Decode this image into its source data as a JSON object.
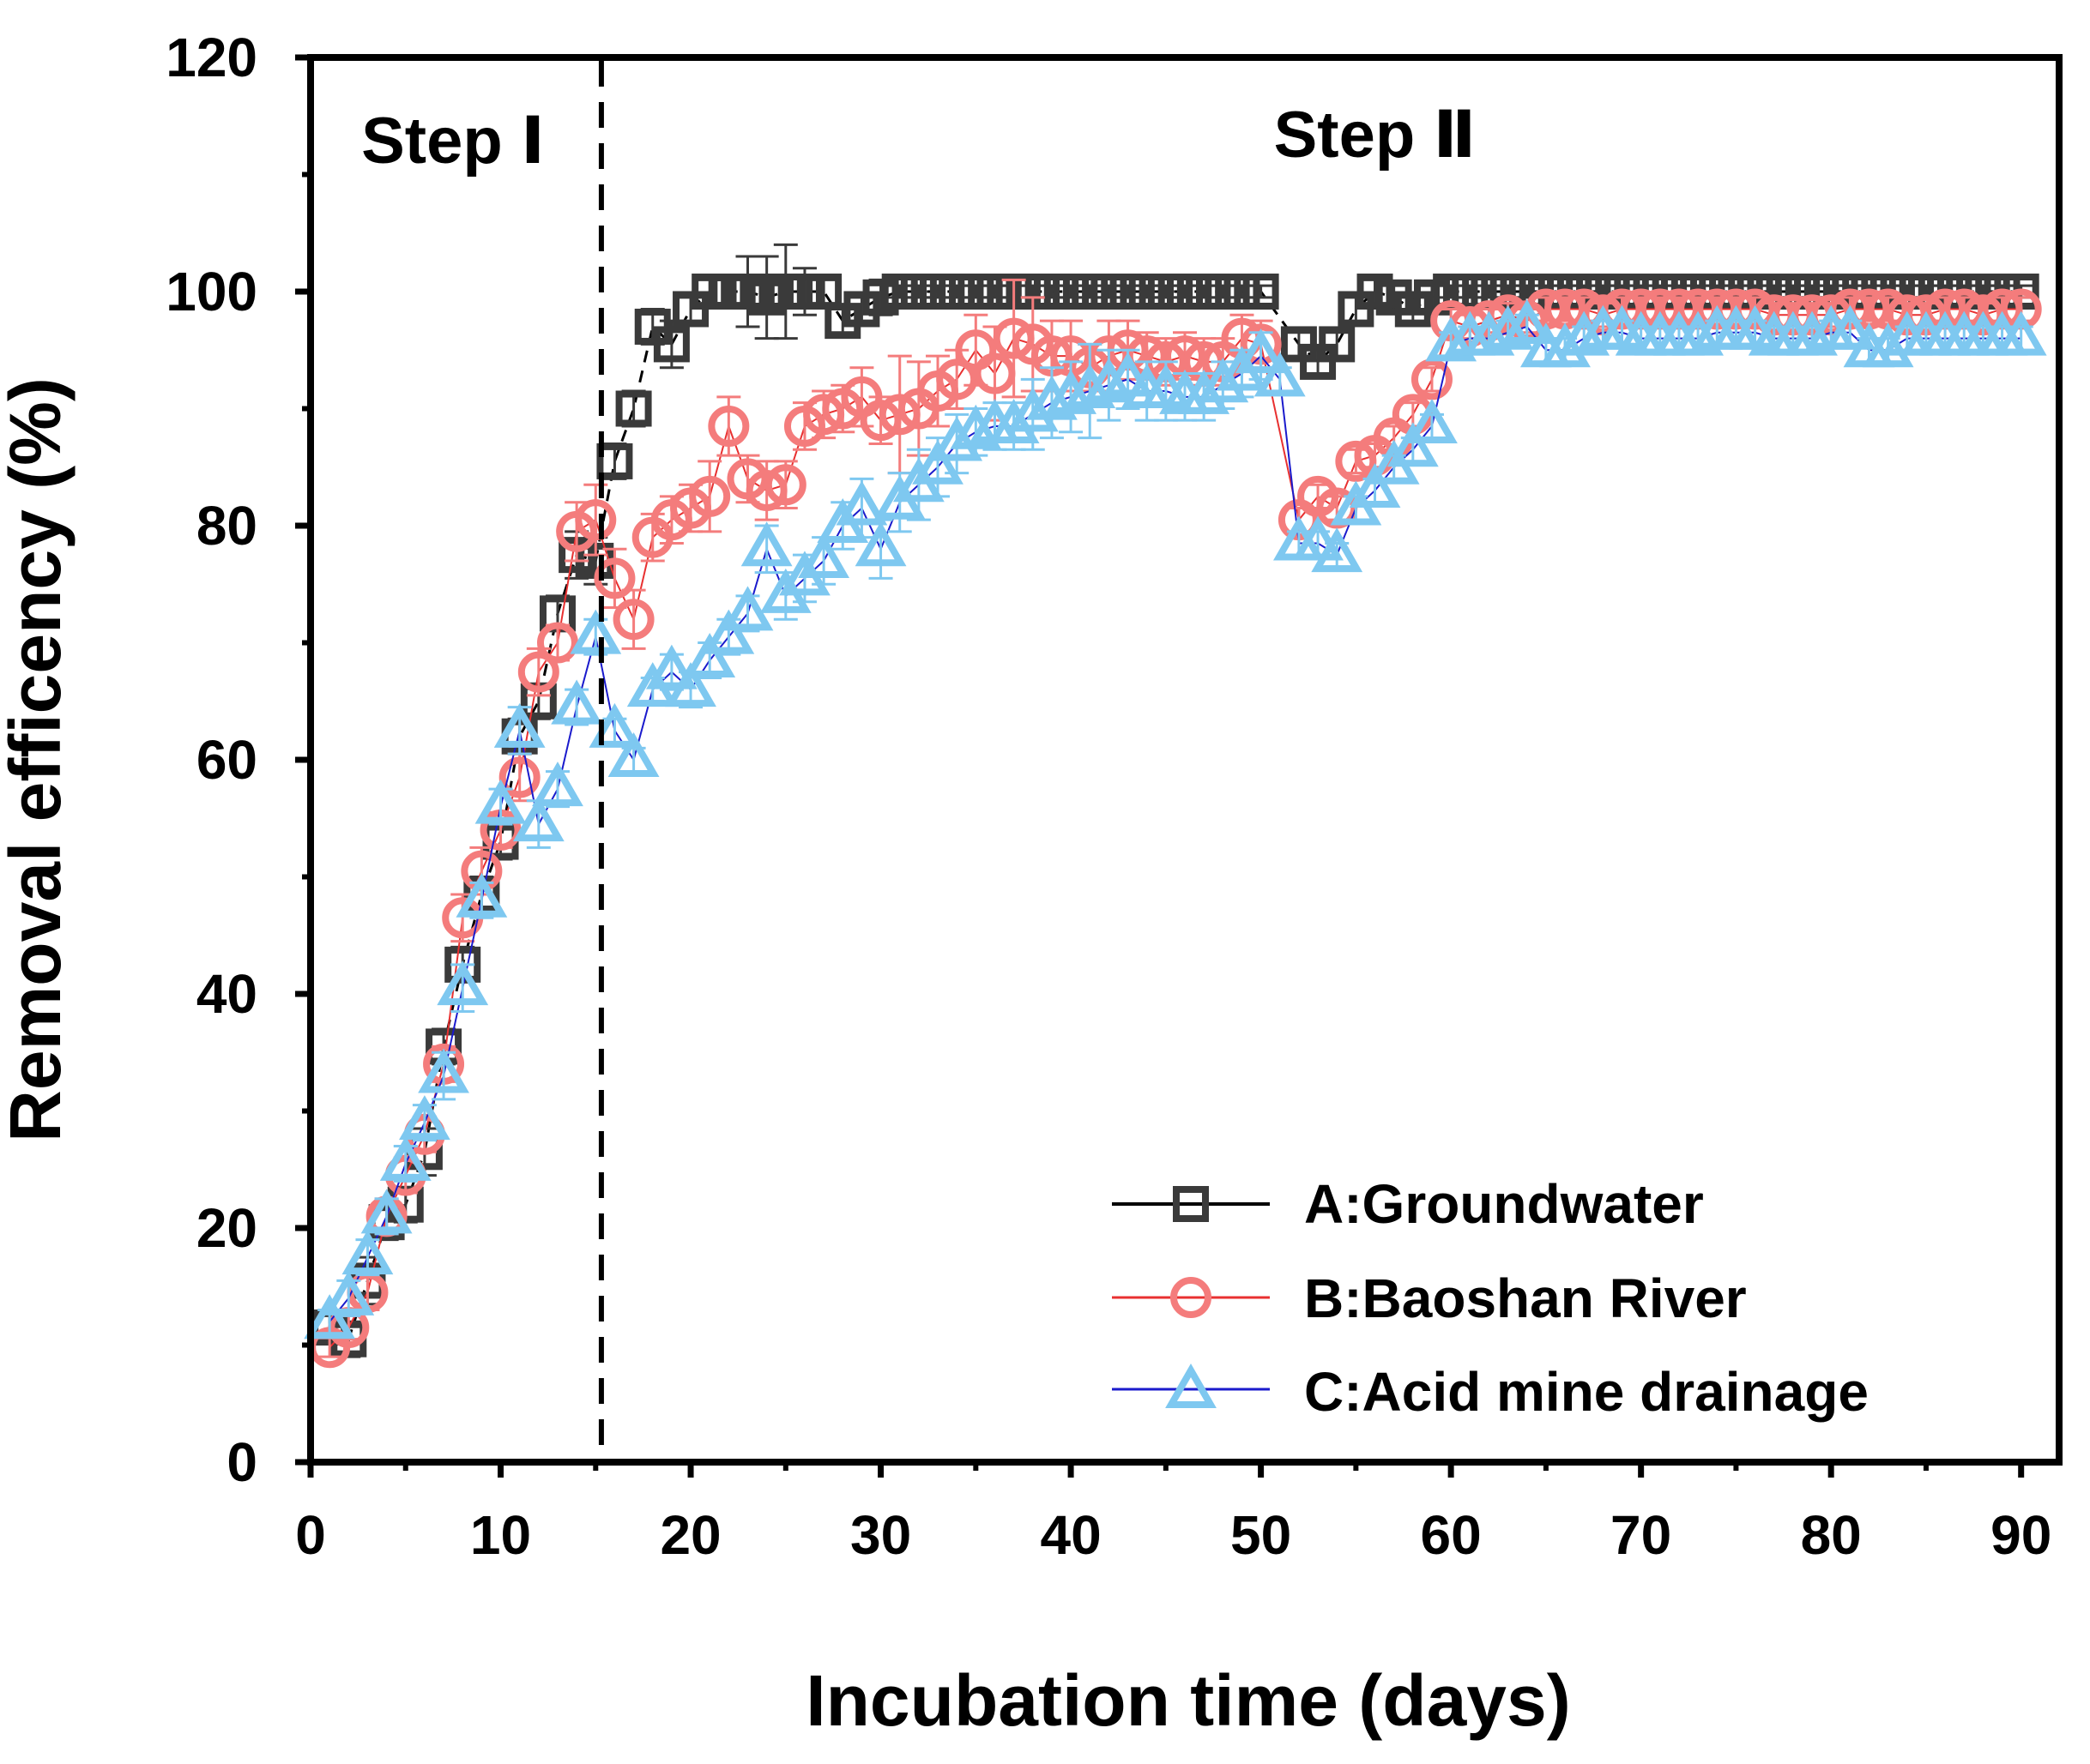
{
  "chart_data": {
    "type": "scatter",
    "xlabel": "Incubation time (days)",
    "ylabel": "Removal efficency (%)",
    "xlim": [
      0,
      92
    ],
    "ylim": [
      0,
      120
    ],
    "xticks": [
      0,
      10,
      20,
      30,
      40,
      50,
      60,
      70,
      80,
      90
    ],
    "yticks": [
      0,
      20,
      40,
      60,
      80,
      100,
      120
    ],
    "grid": false,
    "divider_x": 15.3,
    "regions": [
      {
        "label": "Step Ⅰ",
        "x": 7.5,
        "y": 111
      },
      {
        "label": "Step Ⅱ",
        "x": 56,
        "y": 111.5
      }
    ],
    "legend_position": "bottom-right",
    "series": [
      {
        "name": "A:Groundwater",
        "color": "#3a3a3a",
        "line_color": "#000000",
        "marker": "square",
        "x": [
          1,
          2,
          3,
          4,
          5,
          6,
          7,
          8,
          9,
          10,
          11,
          12,
          13,
          14,
          15,
          16,
          17,
          18,
          19,
          20,
          21,
          22,
          23,
          24,
          25,
          26,
          27,
          28,
          29,
          30,
          31,
          32,
          33,
          34,
          35,
          36,
          37,
          38,
          39,
          40,
          41,
          42,
          43,
          44,
          45,
          46,
          47,
          48,
          49,
          50,
          52,
          53,
          54,
          55,
          56,
          57,
          58,
          59,
          60,
          61,
          62,
          63,
          64,
          65,
          66,
          67,
          68,
          69,
          70,
          71,
          72,
          73,
          74,
          75,
          76,
          77,
          78,
          79,
          80,
          81,
          82,
          83,
          84,
          85,
          86,
          87,
          88,
          89,
          90
        ],
        "y": [
          11.5,
          10.5,
          15.5,
          20.5,
          22,
          26.5,
          35.5,
          42.5,
          48.5,
          53,
          62,
          65,
          72.5,
          77.5,
          77,
          85.5,
          90,
          97,
          95.5,
          98.5,
          100,
          100,
          100,
          99.5,
          100,
          100,
          100,
          97.5,
          98.5,
          99.5,
          100,
          100,
          100,
          100,
          100,
          100,
          100,
          100,
          100,
          100,
          100,
          100,
          100,
          100,
          100,
          100,
          100,
          100,
          100,
          100,
          95.5,
          94,
          95.5,
          98.5,
          100,
          99.5,
          98.5,
          99.5,
          100,
          100,
          100,
          100,
          100,
          100,
          100,
          100,
          100,
          100,
          100,
          100,
          100,
          100,
          100,
          100,
          100,
          100,
          100,
          100,
          100,
          100,
          100,
          100,
          100,
          100,
          100,
          100,
          100,
          100,
          100
        ],
        "error": [
          1,
          1.5,
          2,
          1.5,
          1.5,
          2,
          1.5,
          1.5,
          1.5,
          1.5,
          1.5,
          1.5,
          1.5,
          2,
          2,
          1.5,
          1.5,
          1.5,
          2,
          1,
          1,
          1,
          3,
          3.5,
          4,
          2,
          1,
          1,
          1,
          1.5,
          0.5,
          0.5,
          0.5,
          0.5,
          0.5,
          0.5,
          0.5,
          0.5,
          0.5,
          0.5,
          0.5,
          0.5,
          0.5,
          0.5,
          0.5,
          0.5,
          0.5,
          0.5,
          0.5,
          0.5,
          1,
          1,
          1,
          1,
          1,
          1,
          1,
          1,
          0.5,
          0.5,
          0.5,
          0.5,
          0.5,
          0.5,
          0.5,
          0.5,
          0.5,
          0.5,
          0.5,
          0.5,
          0.5,
          0.5,
          0.5,
          0.5,
          0.5,
          0.5,
          0.5,
          0.5,
          0.5,
          0.5,
          0.5,
          0.5,
          0.5,
          0.5,
          0.5,
          0.5,
          0.5,
          0.5,
          0.5
        ]
      },
      {
        "name": "B:Baoshan River",
        "color": "#f47c7c",
        "line_color": "#e83030",
        "marker": "circle",
        "x": [
          1,
          2,
          3,
          4,
          5,
          6,
          7,
          8,
          9,
          10,
          11,
          12,
          13,
          14,
          15,
          16,
          17,
          18,
          19,
          20,
          21,
          22,
          23,
          24,
          25,
          26,
          27,
          28,
          29,
          30,
          31,
          32,
          33,
          34,
          35,
          36,
          37,
          38,
          39,
          40,
          41,
          42,
          43,
          44,
          45,
          46,
          47,
          48,
          49,
          50,
          52,
          53,
          54,
          55,
          56,
          57,
          58,
          59,
          60,
          61,
          62,
          63,
          64,
          65,
          66,
          67,
          68,
          69,
          70,
          71,
          72,
          73,
          74,
          75,
          76,
          77,
          78,
          79,
          80,
          81,
          82,
          83,
          84,
          85,
          86,
          87,
          88,
          89,
          90
        ],
        "y": [
          9.8,
          11.5,
          14.5,
          21,
          24.5,
          28,
          34,
          46.5,
          50.5,
          54,
          58.5,
          67.5,
          70,
          79.5,
          80.5,
          75.5,
          72,
          79,
          80.5,
          81.5,
          82.5,
          88.5,
          84,
          83,
          83.5,
          88.5,
          89.5,
          90,
          91,
          89,
          89.5,
          90,
          91.5,
          92.5,
          95,
          93,
          96,
          95.5,
          94.5,
          94.5,
          93.5,
          94.5,
          95,
          94.5,
          94,
          94.5,
          94,
          94,
          96,
          95.5,
          80.5,
          82.5,
          81.5,
          85.5,
          86,
          87.5,
          89.5,
          92.5,
          97.5,
          97,
          97.5,
          98,
          97.5,
          98.5,
          98.5,
          98.5,
          98,
          98.5,
          98.5,
          98.5,
          98.5,
          98.5,
          98.5,
          98.5,
          98.5,
          98,
          98,
          98,
          98,
          98.5,
          98.5,
          98.5,
          98,
          98,
          98.5,
          98.5,
          98,
          98.5,
          98.5
        ],
        "error": [
          0.8,
          1,
          1.5,
          1.5,
          1.5,
          1.5,
          1.5,
          2,
          2,
          1.5,
          2,
          2,
          1.5,
          2.5,
          3,
          2.5,
          2.5,
          2,
          2,
          2,
          3,
          2.5,
          2,
          2.5,
          2,
          2,
          2,
          2,
          2.5,
          2,
          5,
          4,
          3,
          2.5,
          3,
          4,
          5,
          4,
          3,
          3,
          2,
          3,
          2.5,
          2,
          2,
          2,
          2,
          2,
          2,
          2,
          1,
          1,
          1,
          1,
          1,
          1,
          1,
          1,
          1,
          1,
          1,
          1,
          1,
          1,
          1,
          1,
          1,
          1,
          1,
          1,
          1,
          1,
          1,
          1,
          1,
          1,
          1,
          1,
          1,
          1,
          1,
          1,
          1,
          1,
          1,
          1,
          1,
          1,
          1
        ]
      },
      {
        "name": "C:Acid mine drainage",
        "color": "#7ec8f0",
        "line_color": "#1a1acc",
        "marker": "triangle",
        "x": [
          1,
          2,
          3,
          4,
          5,
          6,
          7,
          8,
          9,
          10,
          11,
          12,
          13,
          14,
          15,
          16,
          17,
          18,
          19,
          20,
          21,
          22,
          23,
          24,
          25,
          26,
          27,
          28,
          29,
          30,
          31,
          32,
          33,
          34,
          35,
          36,
          37,
          38,
          39,
          40,
          41,
          42,
          43,
          44,
          45,
          46,
          47,
          48,
          49,
          50,
          51,
          52,
          53,
          54,
          55,
          56,
          57,
          58,
          59,
          60,
          61,
          62,
          63,
          64,
          65,
          66,
          67,
          68,
          69,
          70,
          71,
          72,
          73,
          74,
          75,
          76,
          77,
          78,
          79,
          80,
          81,
          82,
          83,
          84,
          85,
          86,
          87,
          88,
          89,
          90
        ],
        "y": [
          12,
          14,
          17.5,
          21,
          25.5,
          29,
          33,
          40.5,
          48,
          56,
          62.5,
          54.5,
          57.5,
          64.5,
          70.5,
          62.5,
          60,
          66,
          67.5,
          66,
          68.5,
          70.5,
          72.5,
          78,
          74,
          75.5,
          77,
          80,
          81.5,
          78,
          82,
          83.5,
          85,
          87,
          88,
          88.5,
          88.5,
          89.5,
          90.5,
          91,
          91.5,
          92,
          92.5,
          91.5,
          91.5,
          91,
          91,
          92,
          93,
          94.5,
          92.5,
          78.5,
          78.5,
          77.5,
          81.5,
          83,
          85,
          86.5,
          88.5,
          95.5,
          96,
          96,
          96.5,
          97,
          95,
          95,
          96,
          96.5,
          96.5,
          96,
          96,
          96,
          96,
          96.5,
          96.5,
          96.5,
          96,
          96,
          96,
          96.5,
          96.5,
          95,
          95,
          96,
          96,
          96,
          96,
          96,
          96,
          96
        ],
        "error": [
          1,
          1.5,
          1.5,
          1.5,
          1.5,
          1.5,
          2,
          2,
          1.5,
          1.5,
          2,
          2,
          1.5,
          1.5,
          1.5,
          1,
          1,
          1,
          1.5,
          1.5,
          1.5,
          1.5,
          1.5,
          2,
          2,
          2,
          2,
          2,
          2.5,
          2.5,
          2.5,
          3,
          2.5,
          2.5,
          2,
          2,
          2,
          3,
          3,
          3,
          4,
          3,
          2.5,
          2.5,
          2.5,
          2,
          2,
          2,
          2,
          2,
          1,
          1,
          1,
          1,
          1,
          1,
          1,
          1,
          1,
          1,
          1,
          1,
          1,
          1,
          1,
          1,
          1,
          1,
          1,
          1,
          1,
          1,
          1,
          1,
          1,
          1,
          1,
          1,
          1,
          1,
          1,
          1,
          1,
          1,
          1,
          1,
          1,
          1,
          1,
          1
        ]
      }
    ]
  }
}
